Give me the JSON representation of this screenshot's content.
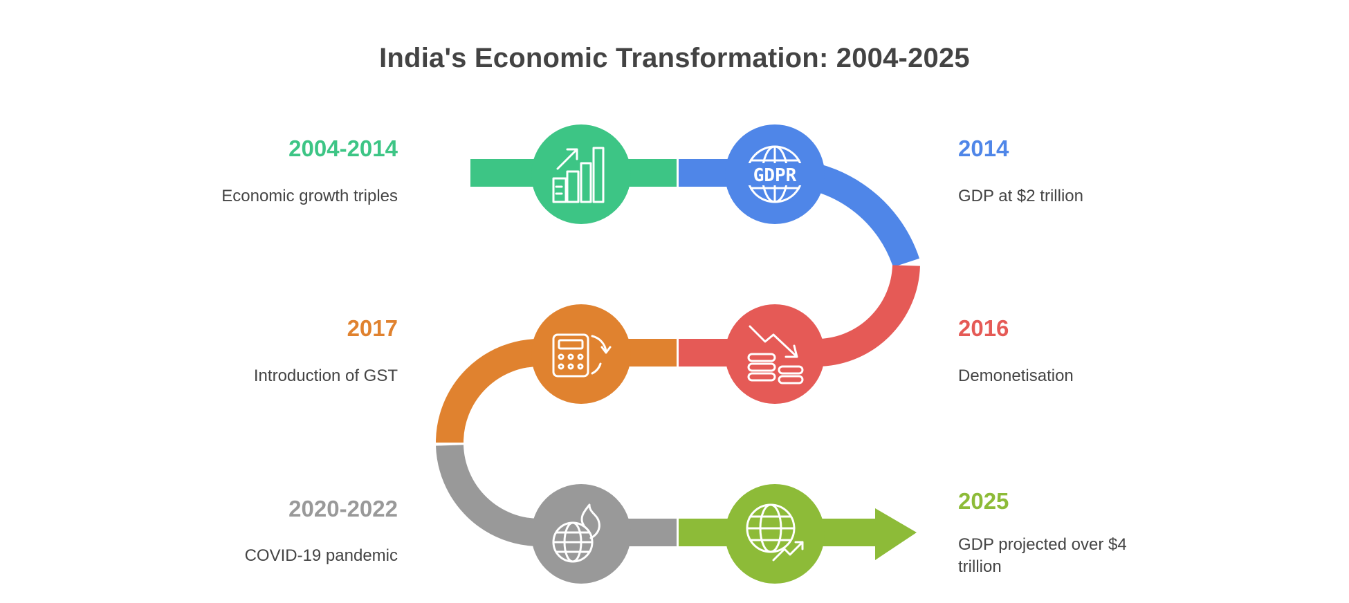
{
  "title": "India's Economic Transformation: 2004-2025",
  "colors": {
    "green": "#3DC585",
    "blue": "#4F86E8",
    "red": "#E55A56",
    "orange": "#E0822F",
    "gray": "#999999",
    "lime": "#8DBB38"
  },
  "milestones": [
    {
      "year": "2004-2014",
      "text": "Economic growth triples",
      "icon": "growth-chart-icon"
    },
    {
      "year": "2014",
      "text": "GDP at $2 trillion",
      "icon": "gdpr-globe-icon",
      "icon_text": "GDPR"
    },
    {
      "year": "2016",
      "text": "Demonetisation",
      "icon": "falling-coins-icon"
    },
    {
      "year": "2017",
      "text": "Introduction of GST",
      "icon": "calculator-refresh-icon"
    },
    {
      "year": "2020-2022",
      "text": "COVID-19 pandemic",
      "icon": "globe-fire-icon"
    },
    {
      "year": "2025",
      "text": "GDP projected over $4 trillion",
      "icon": "globe-growth-icon"
    }
  ]
}
